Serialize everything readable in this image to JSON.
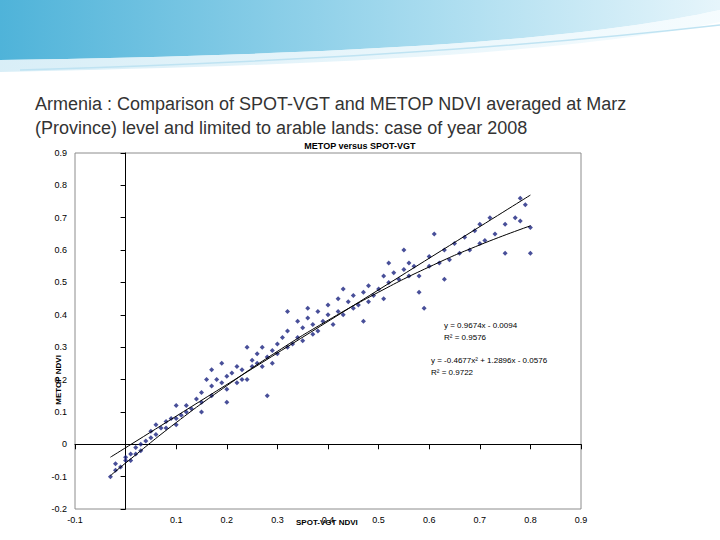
{
  "slide": {
    "title": "Armenia : Comparison of SPOT-VGT and METOP NDVI averaged at Marz (Province) level and limited to arable lands: case of year 2008"
  },
  "chart_data": {
    "type": "scatter",
    "title": "METOP versus SPOT-VGT",
    "x_label": "SPOT-VGT NDVI",
    "y_label": "METOP NDVI",
    "xlim": [
      -0.1,
      0.9
    ],
    "ylim": [
      -0.2,
      0.9
    ],
    "xticks": [
      -0.1,
      0.1,
      0.2,
      0.3,
      0.4,
      0.5,
      0.6,
      0.7,
      0.8,
      0.9
    ],
    "yticks": [
      -0.2,
      -0.1,
      0,
      0.1,
      0.2,
      0.3,
      0.4,
      0.5,
      0.6,
      0.7,
      0.8,
      0.9
    ],
    "grid": false,
    "annotations": [
      "y = 0.9674x - 0.0094",
      "R² = 0.9576",
      "y = -0.4677x² + 1.2896x - 0.0576",
      "R² = 0.9722"
    ],
    "series": [
      {
        "type": "scatter",
        "color": "#1a2380",
        "marker": "diamond",
        "x": [
          -0.03,
          -0.02,
          -0.02,
          -0.01,
          0,
          0,
          0.01,
          0.01,
          0.02,
          0.02,
          0.03,
          0.03,
          0.04,
          0.05,
          0.05,
          0.06,
          0.07,
          0.06,
          0.08,
          0.09,
          0.1,
          0.1,
          0.11,
          0.12,
          0.12,
          0.13,
          0.14,
          0.15,
          0.15,
          0.16,
          0.17,
          0.17,
          0.18,
          0.19,
          0.2,
          0.2,
          0.21,
          0.22,
          0.22,
          0.23,
          0.24,
          0.25,
          0.25,
          0.26,
          0.26,
          0.27,
          0.27,
          0.28,
          0.29,
          0.29,
          0.3,
          0.3,
          0.31,
          0.32,
          0.32,
          0.33,
          0.34,
          0.34,
          0.35,
          0.35,
          0.36,
          0.37,
          0.37,
          0.38,
          0.38,
          0.39,
          0.4,
          0.4,
          0.41,
          0.42,
          0.42,
          0.43,
          0.44,
          0.45,
          0.45,
          0.46,
          0.47,
          0.48,
          0.48,
          0.49,
          0.5,
          0.51,
          0.51,
          0.52,
          0.53,
          0.54,
          0.55,
          0.56,
          0.56,
          0.57,
          0.58,
          0.58,
          0.59,
          0.6,
          0.6,
          0.61,
          0.62,
          0.63,
          0.64,
          0.65,
          0.66,
          0.67,
          0.68,
          0.69,
          0.7,
          0.7,
          0.71,
          0.72,
          0.73,
          0.75,
          0.75,
          0.77,
          0.78,
          0.78,
          0.79,
          0.8,
          0.8,
          0.63,
          0.55,
          0.47,
          0.28,
          0.2,
          0.17,
          0.36,
          0.43,
          0.52,
          0.1,
          0.15,
          0.08,
          0.19,
          0.24,
          0.32,
          0.23
        ],
        "values": [
          -0.1,
          -0.08,
          -0.06,
          -0.07,
          -0.05,
          -0.04,
          -0.05,
          -0.03,
          -0.03,
          -0.01,
          -0.02,
          0,
          0.01,
          0.02,
          0.04,
          0.03,
          0.05,
          0.06,
          0.07,
          0.08,
          0.08,
          0.06,
          0.09,
          0.1,
          0.12,
          0.11,
          0.14,
          0.13,
          0.16,
          0.2,
          0.15,
          0.18,
          0.2,
          0.19,
          0.21,
          0.17,
          0.22,
          0.24,
          0.19,
          0.23,
          0.2,
          0.26,
          0.24,
          0.28,
          0.25,
          0.3,
          0.24,
          0.27,
          0.29,
          0.25,
          0.31,
          0.28,
          0.33,
          0.3,
          0.35,
          0.31,
          0.38,
          0.33,
          0.36,
          0.32,
          0.39,
          0.34,
          0.37,
          0.41,
          0.35,
          0.38,
          0.4,
          0.43,
          0.37,
          0.41,
          0.45,
          0.4,
          0.44,
          0.42,
          0.46,
          0.43,
          0.47,
          0.44,
          0.49,
          0.46,
          0.48,
          0.52,
          0.45,
          0.5,
          0.53,
          0.51,
          0.54,
          0.52,
          0.56,
          0.55,
          0.52,
          0.47,
          0.42,
          0.58,
          0.55,
          0.65,
          0.56,
          0.6,
          0.57,
          0.62,
          0.59,
          0.64,
          0.6,
          0.66,
          0.62,
          0.68,
          0.63,
          0.7,
          0.65,
          0.59,
          0.68,
          0.7,
          0.76,
          0.69,
          0.74,
          0.67,
          0.59,
          0.51,
          0.6,
          0.38,
          0.15,
          0.13,
          0.23,
          0.42,
          0.48,
          0.56,
          0.12,
          0.1,
          0.05,
          0.25,
          0.3,
          0.41,
          0.2
        ]
      },
      {
        "type": "line",
        "color": "#000000",
        "line_style": "solid",
        "x": [
          -0.03,
          0.8
        ],
        "values": [
          -0.04,
          0.77
        ]
      },
      {
        "type": "line",
        "color": "#000000",
        "line_style": "solid",
        "x": [
          -0.03,
          0,
          0.1,
          0.2,
          0.3,
          0.4,
          0.5,
          0.6,
          0.7,
          0.8
        ],
        "values": [
          -0.097,
          -0.058,
          0.067,
          0.181,
          0.287,
          0.383,
          0.47,
          0.548,
          0.616,
          0.675
        ]
      }
    ]
  }
}
